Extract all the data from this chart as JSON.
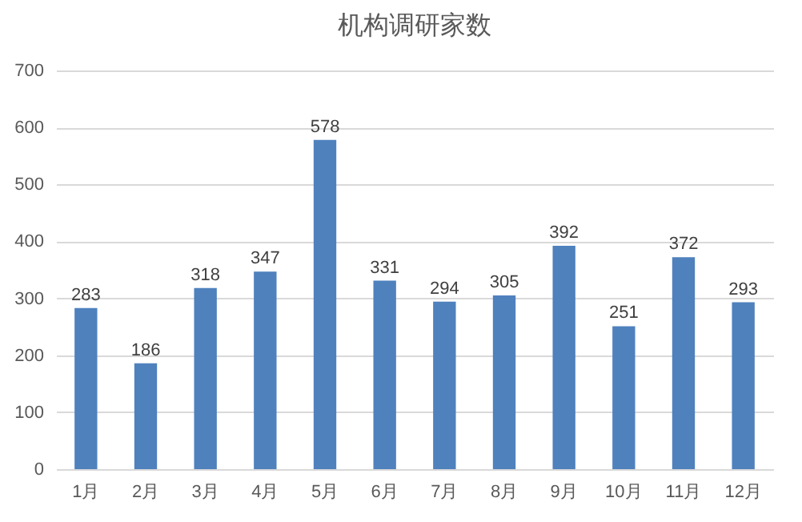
{
  "chart_data": {
    "type": "bar",
    "title": "机构调研家数",
    "categories": [
      "1月",
      "2月",
      "3月",
      "4月",
      "5月",
      "6月",
      "7月",
      "8月",
      "9月",
      "10月",
      "11月",
      "12月"
    ],
    "values": [
      283,
      186,
      318,
      347,
      578,
      331,
      294,
      305,
      392,
      251,
      372,
      293
    ],
    "color": "#4f81bd",
    "ylim": [
      0,
      700
    ],
    "yticks": [
      0,
      100,
      200,
      300,
      400,
      500,
      600,
      700
    ],
    "grid": "y",
    "data_labels": true
  }
}
